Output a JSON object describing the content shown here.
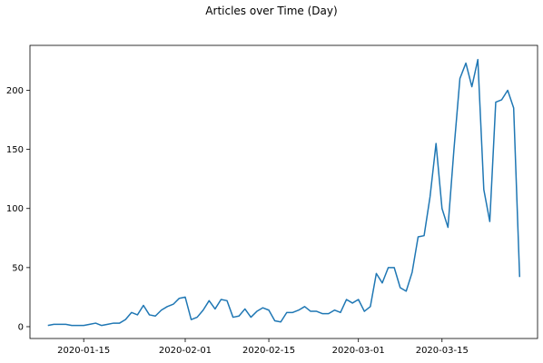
{
  "chart_data": {
    "type": "line",
    "title": "Articles over Time (Day)",
    "xlabel": "",
    "ylabel": "",
    "grid": false,
    "xlim": [
      "2020-01-06",
      "2020-03-31"
    ],
    "ylim": [
      -10,
      238
    ],
    "x_ticks": [
      "2020-01-15",
      "2020-02-01",
      "2020-02-15",
      "2020-03-01",
      "2020-03-15"
    ],
    "y_ticks": [
      0,
      50,
      100,
      150,
      200
    ],
    "series": [
      {
        "color": "#1f77b4",
        "x": [
          "2020-01-09",
          "2020-01-10",
          "2020-01-11",
          "2020-01-12",
          "2020-01-13",
          "2020-01-14",
          "2020-01-15",
          "2020-01-16",
          "2020-01-17",
          "2020-01-18",
          "2020-01-19",
          "2020-01-20",
          "2020-01-21",
          "2020-01-22",
          "2020-01-23",
          "2020-01-24",
          "2020-01-25",
          "2020-01-26",
          "2020-01-27",
          "2020-01-28",
          "2020-01-29",
          "2020-01-30",
          "2020-01-31",
          "2020-02-01",
          "2020-02-02",
          "2020-02-03",
          "2020-02-04",
          "2020-02-05",
          "2020-02-06",
          "2020-02-07",
          "2020-02-08",
          "2020-02-09",
          "2020-02-10",
          "2020-02-11",
          "2020-02-12",
          "2020-02-13",
          "2020-02-14",
          "2020-02-15",
          "2020-02-16",
          "2020-02-17",
          "2020-02-18",
          "2020-02-19",
          "2020-02-20",
          "2020-02-21",
          "2020-02-22",
          "2020-02-23",
          "2020-02-24",
          "2020-02-25",
          "2020-02-26",
          "2020-02-27",
          "2020-02-28",
          "2020-02-29",
          "2020-03-01",
          "2020-03-02",
          "2020-03-03",
          "2020-03-04",
          "2020-03-05",
          "2020-03-06",
          "2020-03-07",
          "2020-03-08",
          "2020-03-09",
          "2020-03-10",
          "2020-03-11",
          "2020-03-12",
          "2020-03-13",
          "2020-03-14",
          "2020-03-15",
          "2020-03-16",
          "2020-03-17",
          "2020-03-18",
          "2020-03-19",
          "2020-03-20",
          "2020-03-21",
          "2020-03-22",
          "2020-03-23",
          "2020-03-24",
          "2020-03-25",
          "2020-03-26",
          "2020-03-27",
          "2020-03-28"
        ],
        "values": [
          1,
          2,
          2,
          2,
          1,
          1,
          1,
          2,
          3,
          1,
          2,
          3,
          3,
          6,
          12,
          10,
          18,
          10,
          9,
          14,
          17,
          19,
          24,
          25,
          6,
          8,
          14,
          22,
          15,
          23,
          22,
          8,
          9,
          15,
          8,
          13,
          16,
          14,
          5,
          4,
          12,
          12,
          14,
          17,
          13,
          13,
          11,
          11,
          14,
          12,
          23,
          20,
          23,
          13,
          17,
          45,
          37,
          50,
          50,
          33,
          30,
          46,
          76,
          77,
          110,
          155,
          100,
          84,
          150,
          210,
          223,
          203,
          226,
          116,
          89,
          190,
          192,
          200,
          185,
          42
        ]
      }
    ]
  }
}
